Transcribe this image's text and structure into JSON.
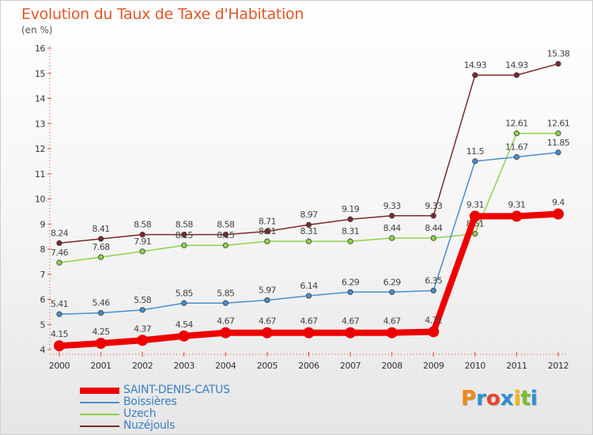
{
  "title": "Evolution du Taux de Taxe d'Habitation",
  "unit": "(en %)",
  "brand": "Proxiti",
  "brand_colors": [
    "#f08a16",
    "#2a8fd6",
    "#e4472c",
    "#2a8fd6",
    "#f2b705",
    "#7bbf2a",
    "#2a8fd6"
  ],
  "chart_data": {
    "type": "line",
    "x": [
      "2000",
      "2001",
      "2002",
      "2003",
      "2004",
      "2005",
      "2006",
      "2007",
      "2008",
      "2009",
      "2010",
      "2011",
      "2012"
    ],
    "ylim": [
      4,
      16
    ],
    "yticks": [
      "4",
      "5",
      "6",
      "7",
      "8",
      "9",
      "10",
      "11",
      "12",
      "13",
      "14",
      "15",
      "16"
    ],
    "grid": false,
    "legend_position": "bottom-left",
    "series": [
      {
        "name": "SAINT-DENIS-CATUS",
        "color": "#ee0000",
        "values": [
          4.15,
          4.25,
          4.37,
          4.54,
          4.67,
          4.67,
          4.67,
          4.67,
          4.67,
          4.71,
          9.31,
          9.31,
          9.4
        ],
        "labels": [
          "4.15",
          "4.25",
          "4.37",
          "4.54",
          "4.67",
          "4.67",
          "4.67",
          "4.67",
          "4.67",
          "4.71",
          "9.31",
          "9.31",
          "9.4"
        ]
      },
      {
        "name": "Boissières",
        "color": "#4a8ec9",
        "values": [
          5.41,
          5.46,
          5.58,
          5.85,
          5.85,
          5.97,
          6.14,
          6.29,
          6.29,
          6.35,
          11.5,
          11.67,
          11.85
        ],
        "labels": [
          "5.41",
          "5.46",
          "5.58",
          "5.85",
          "5.85",
          "5.97",
          "6.14",
          "6.29",
          "6.29",
          "6.35",
          "11.5",
          "11.67",
          "11.85"
        ]
      },
      {
        "name": "Uzech",
        "color": "#8ed34a",
        "values": [
          7.46,
          7.68,
          7.91,
          8.15,
          8.15,
          8.31,
          8.31,
          8.31,
          8.44,
          8.44,
          8.61,
          12.61,
          12.61
        ],
        "labels": [
          "7.46",
          "7.68",
          "7.91",
          "8.15",
          "8.15",
          "8.31",
          "8.31",
          "8.31",
          "8.44",
          "8.44",
          "8.61",
          "12.61",
          "12.61"
        ]
      },
      {
        "name": "Nuzéjouls",
        "color": "#7a2a2a",
        "values": [
          8.24,
          8.41,
          8.58,
          8.58,
          8.58,
          8.71,
          8.97,
          9.19,
          9.33,
          9.33,
          14.93,
          14.93,
          15.38
        ],
        "labels": [
          "8.24",
          "8.41",
          "8.58",
          "8.58",
          "8.58",
          "8.71",
          "8.97",
          "9.19",
          "9.33",
          "9.33",
          "14.93",
          "14.93",
          "15.38"
        ]
      }
    ]
  }
}
